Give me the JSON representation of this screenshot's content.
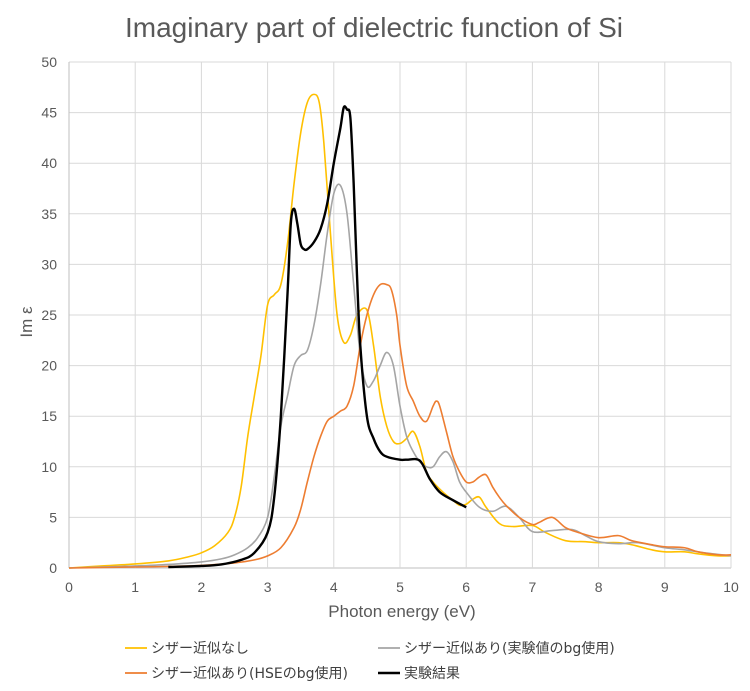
{
  "chart_data": {
    "type": "line",
    "title": "Imaginary part of dielectric function of Si",
    "xlabel": "Photon energy (eV)",
    "ylabel": "Im ε",
    "xlim": [
      0,
      10
    ],
    "ylim": [
      0,
      50
    ],
    "xticks": [
      "0",
      "1",
      "2",
      "3",
      "4",
      "5",
      "6",
      "7",
      "8",
      "9",
      "10"
    ],
    "yticks": [
      "0",
      "5",
      "10",
      "15",
      "20",
      "25",
      "30",
      "35",
      "40",
      "45",
      "50"
    ],
    "grid": true,
    "legend_position": "bottom",
    "series": [
      {
        "name": "シザー近似なし",
        "color": "#ffc000",
        "x": [
          0,
          0.5,
          1,
          1.5,
          1.8,
          2,
          2.2,
          2.4,
          2.5,
          2.6,
          2.7,
          2.8,
          2.9,
          3,
          3.1,
          3.2,
          3.3,
          3.4,
          3.5,
          3.6,
          3.7,
          3.78,
          3.85,
          3.95,
          4.05,
          4.15,
          4.25,
          4.35,
          4.5,
          4.6,
          4.7,
          4.8,
          4.9,
          5,
          5.1,
          5.2,
          5.3,
          5.4,
          5.5,
          5.6,
          5.7,
          5.8,
          5.9,
          6,
          6.1,
          6.2,
          6.3,
          6.5,
          6.7,
          7,
          7.2,
          7.5,
          7.8,
          8,
          8.3,
          8.5,
          8.8,
          9,
          9.3,
          9.5,
          9.8,
          10
        ],
        "y": [
          0,
          0.2,
          0.4,
          0.7,
          1.1,
          1.5,
          2.2,
          3.5,
          5,
          8,
          13,
          17,
          21,
          26,
          27,
          28,
          32,
          38,
          43,
          46,
          46.8,
          46,
          42,
          33,
          25,
          22.3,
          23,
          25,
          25.5,
          22,
          17,
          14,
          12.5,
          12.3,
          12.8,
          13.5,
          12,
          9.5,
          8.5,
          7.8,
          7.2,
          6.7,
          6.2,
          6.3,
          6.8,
          7,
          6,
          4.4,
          4.1,
          4.2,
          3.5,
          2.7,
          2.6,
          2.5,
          2.5,
          2.3,
          1.8,
          1.6,
          1.6,
          1.4,
          1.2,
          1.2
        ]
      },
      {
        "name": "シザー近似あり(実験値のbg使用)",
        "color": "#a5a5a5",
        "x": [
          0,
          0.5,
          1,
          1.5,
          2,
          2.3,
          2.5,
          2.7,
          2.85,
          3,
          3.1,
          3.2,
          3.3,
          3.4,
          3.5,
          3.6,
          3.7,
          3.8,
          3.9,
          4,
          4.1,
          4.2,
          4.3,
          4.4,
          4.5,
          4.6,
          4.7,
          4.8,
          4.9,
          5,
          5.1,
          5.2,
          5.3,
          5.4,
          5.5,
          5.6,
          5.7,
          5.8,
          5.9,
          6,
          6.2,
          6.4,
          6.6,
          6.8,
          7,
          7.3,
          7.6,
          7.8,
          8,
          8.3,
          8.6,
          9,
          9.3,
          9.6,
          10
        ],
        "y": [
          0,
          0.1,
          0.2,
          0.35,
          0.6,
          0.9,
          1.3,
          2,
          3,
          5,
          9,
          14,
          17,
          20,
          21,
          21.5,
          24,
          28,
          33,
          37,
          37.8,
          35,
          28,
          21,
          18,
          18.5,
          20,
          21.3,
          20,
          16,
          13,
          11.5,
          10.5,
          10,
          10,
          11,
          11.5,
          10.5,
          8.5,
          7.5,
          6,
          5.6,
          6.1,
          5,
          3.6,
          3.7,
          3.8,
          3.2,
          2.6,
          2.4,
          2.5,
          2,
          1.8,
          1.5,
          1.2
        ]
      },
      {
        "name": "シザー近似あり(HSEのbg使用)",
        "color": "#ed7d31",
        "x": [
          0,
          0.5,
          1,
          1.5,
          2,
          2.5,
          2.8,
          3,
          3.2,
          3.4,
          3.5,
          3.6,
          3.7,
          3.8,
          3.9,
          4,
          4.1,
          4.2,
          4.3,
          4.4,
          4.5,
          4.6,
          4.7,
          4.8,
          4.87,
          4.95,
          5,
          5.1,
          5.2,
          5.3,
          5.4,
          5.5,
          5.55,
          5.6,
          5.7,
          5.8,
          5.9,
          6,
          6.1,
          6.2,
          6.3,
          6.4,
          6.5,
          6.6,
          6.8,
          7,
          7.1,
          7.3,
          7.5,
          7.7,
          8,
          8.3,
          8.5,
          8.8,
          9,
          9.3,
          9.5,
          9.8,
          10
        ],
        "y": [
          0,
          0.05,
          0.1,
          0.15,
          0.25,
          0.5,
          0.8,
          1.2,
          2,
          4,
          5.8,
          8.5,
          11,
          13,
          14.5,
          15,
          15.5,
          16,
          18,
          22,
          25,
          27,
          28,
          28,
          27.5,
          25,
          22,
          18,
          16.5,
          15,
          14.5,
          16,
          16.5,
          16,
          13.5,
          11,
          9.5,
          8.5,
          8.5,
          9,
          9.2,
          8,
          7,
          6.2,
          5,
          4.3,
          4.5,
          5,
          4,
          3.5,
          3,
          3.2,
          2.7,
          2.3,
          2.1,
          2,
          1.6,
          1.3,
          1.3
        ]
      },
      {
        "name": "実験結果",
        "color": "#000000",
        "x": [
          1.5,
          2,
          2.3,
          2.6,
          2.8,
          3,
          3.1,
          3.2,
          3.3,
          3.35,
          3.4,
          3.45,
          3.5,
          3.55,
          3.6,
          3.7,
          3.8,
          3.9,
          4,
          4.1,
          4.15,
          4.2,
          4.25,
          4.3,
          4.35,
          4.4,
          4.5,
          4.6,
          4.7,
          4.8,
          5,
          5.1,
          5.3,
          5.45,
          5.6,
          5.8,
          6
        ],
        "y": [
          0.1,
          0.2,
          0.35,
          0.8,
          1.5,
          3.5,
          7,
          15,
          27,
          34,
          35.5,
          34,
          32,
          31.5,
          31.5,
          32.2,
          33.5,
          36,
          40,
          43.5,
          45.5,
          45.3,
          44.5,
          38,
          29,
          22,
          15,
          12.8,
          11.5,
          11,
          10.7,
          10.7,
          10.6,
          8.8,
          7.5,
          6.7,
          6
        ]
      }
    ]
  }
}
